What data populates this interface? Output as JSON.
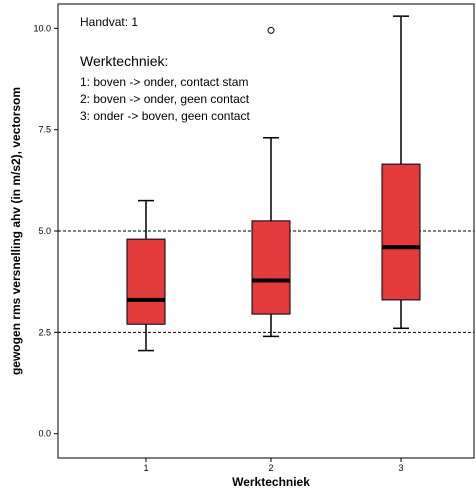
{
  "chart_data": {
    "type": "box",
    "annotations": {
      "handvat": "Handvat: 1",
      "legend_title": "Werktechniek:",
      "legend_items": [
        "1: boven -> onder, contact stam",
        "2: boven -> onder, geen contact",
        "3: onder -> boven, geen contact"
      ]
    },
    "xlabel": "Werktechniek",
    "ylabel": "gewogen rms versnelling ahv (in m/s2), vectorsom",
    "categories": [
      "1",
      "2",
      "3"
    ],
    "y_ticks": [
      "0.0",
      "2.5",
      "5.0",
      "7.5",
      "10.0"
    ],
    "ylim": [
      -0.6,
      10.6
    ],
    "reference_lines": [
      2.5,
      5.0
    ],
    "boxes": [
      {
        "category": "1",
        "min": 2.05,
        "q1": 2.7,
        "median": 3.3,
        "q3": 4.8,
        "max": 5.75,
        "outliers": []
      },
      {
        "category": "2",
        "min": 2.4,
        "q1": 2.95,
        "median": 3.78,
        "q3": 5.25,
        "max": 7.3,
        "outliers": [
          9.95
        ]
      },
      {
        "category": "3",
        "min": 2.6,
        "q1": 3.3,
        "median": 4.6,
        "q3": 6.65,
        "max": 10.3,
        "outliers": []
      }
    ],
    "colors": {
      "box_fill": "#e33b3b",
      "box_stroke": "#000000",
      "reference_line": "#000000"
    },
    "grid": false
  }
}
